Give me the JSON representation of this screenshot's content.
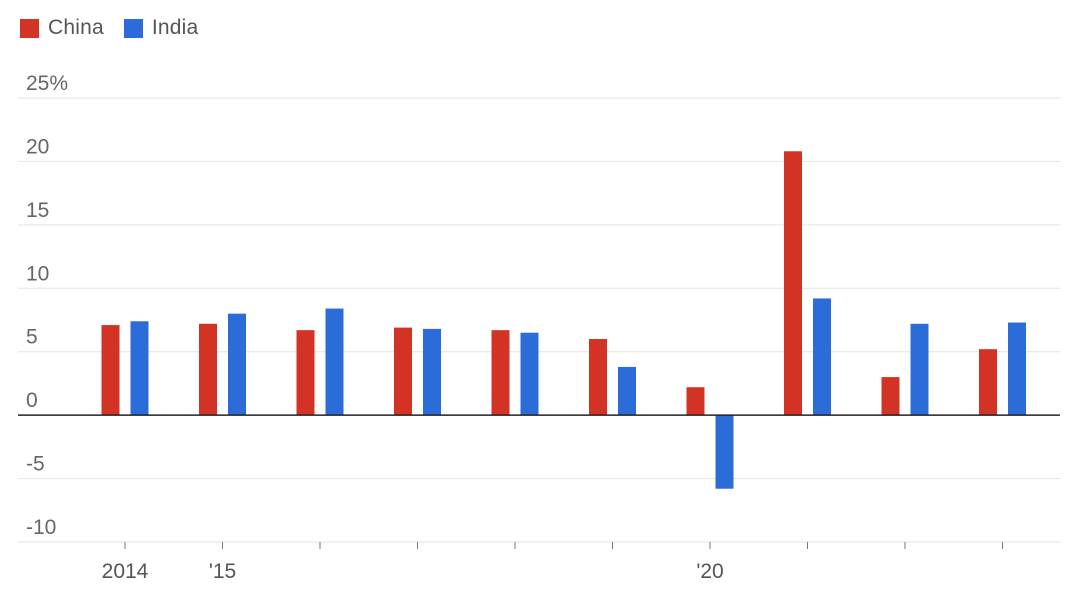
{
  "chart_data": {
    "type": "bar",
    "unit_suffix": "%",
    "ylim": [
      -10,
      25
    ],
    "yticks": [
      25,
      20,
      15,
      10,
      5,
      0,
      -5,
      -10
    ],
    "categories": [
      "2014",
      "'15",
      "",
      "",
      "",
      "",
      "'20",
      "",
      "",
      ""
    ],
    "x": [
      2014,
      2015,
      2016,
      2017,
      2018,
      2019,
      2020,
      2021,
      2022,
      2023
    ],
    "series": [
      {
        "name": "China",
        "color": "#d23324",
        "values": [
          7.1,
          7.2,
          6.7,
          6.9,
          6.7,
          6.0,
          2.2,
          20.8,
          3.0,
          5.2
        ]
      },
      {
        "name": "India",
        "color": "#2b6cd9",
        "values": [
          7.4,
          8.0,
          8.4,
          6.8,
          6.5,
          3.8,
          -5.8,
          9.2,
          7.2,
          7.3
        ]
      }
    ],
    "grid": true,
    "legend_position": "top-left"
  }
}
